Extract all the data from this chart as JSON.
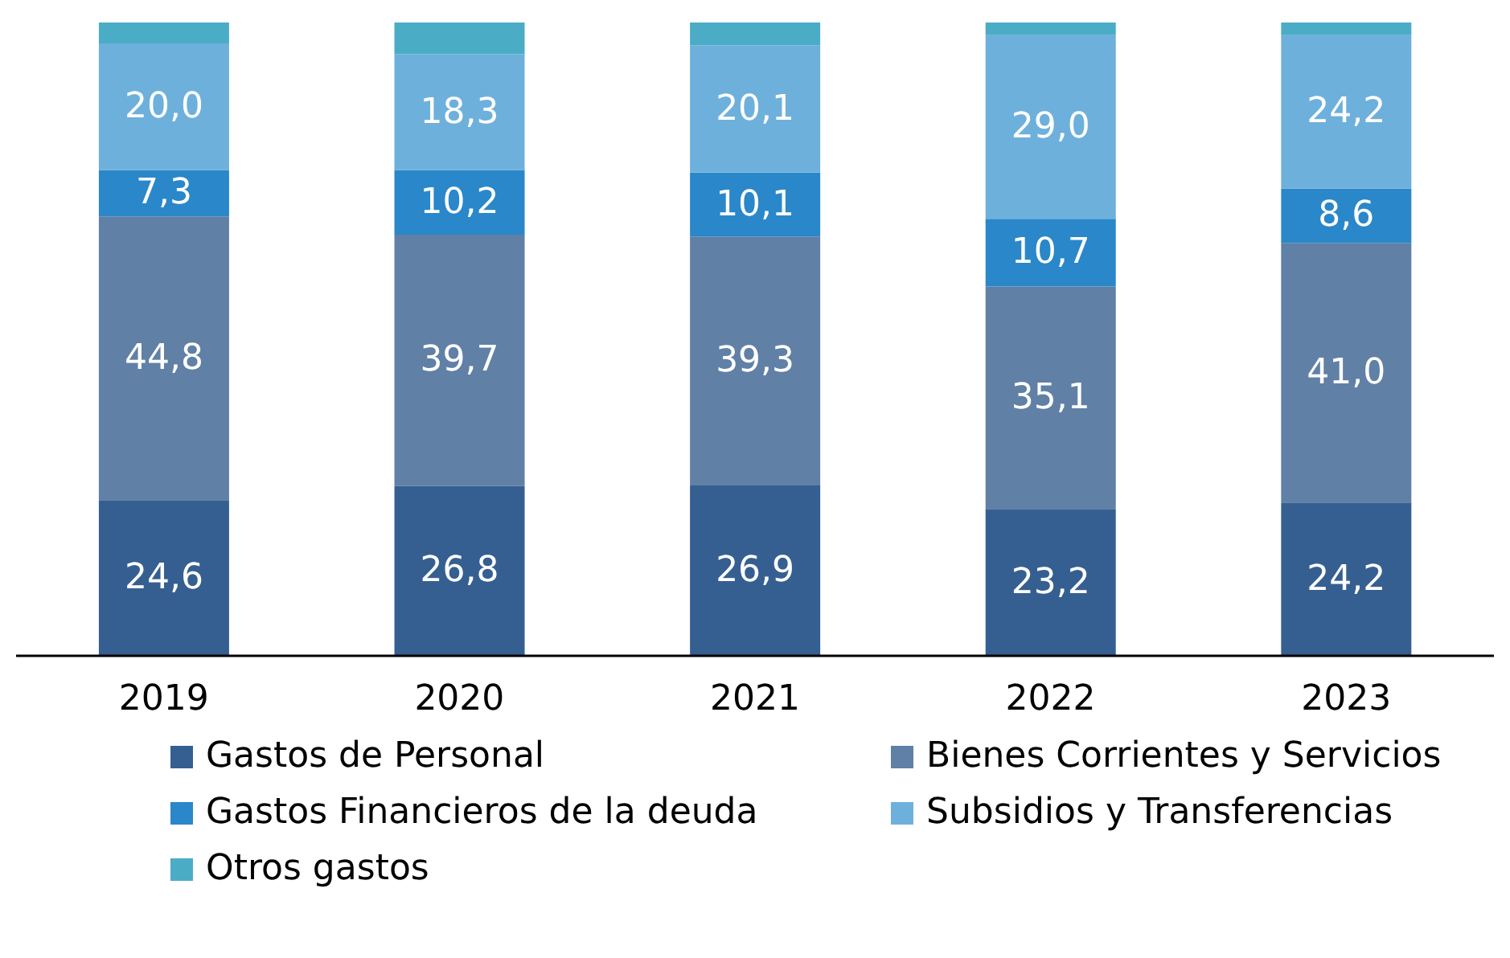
{
  "chart_data": {
    "type": "bar",
    "stacked": true,
    "categories": [
      "2019",
      "2020",
      "2021",
      "2022",
      "2023"
    ],
    "series": [
      {
        "name": "Gastos de Personal",
        "color": "#365f91",
        "values": [
          24.6,
          26.8,
          26.9,
          23.2,
          24.2
        ],
        "value_labels": [
          "24,6",
          "26,8",
          "26,9",
          "23,2",
          "24,2"
        ]
      },
      {
        "name": "Bienes Corrientes y Servicios",
        "color": "#6080a6",
        "values": [
          44.8,
          39.7,
          39.3,
          35.1,
          41.0
        ],
        "value_labels": [
          "44,8",
          "39,7",
          "39,3",
          "35,1",
          "41,0"
        ]
      },
      {
        "name": "Gastos Financieros de la deuda",
        "color": "#2a87c9",
        "values": [
          7.3,
          10.2,
          10.1,
          10.7,
          8.6
        ],
        "value_labels": [
          "7,3",
          "10,2",
          "10,1",
          "10,7",
          "8,6"
        ]
      },
      {
        "name": "Subsidios y Transferencias",
        "color": "#6eb0dc",
        "values": [
          20.0,
          18.3,
          20.1,
          29.0,
          24.2
        ],
        "value_labels": [
          "20,0",
          "18,3",
          "20,1",
          "29,0",
          "24,2"
        ]
      },
      {
        "name": "Otros gastos",
        "color": "#4bacc6",
        "values": [
          3.3,
          5.0,
          3.6,
          2.0,
          2.0
        ],
        "value_labels": [
          null,
          null,
          null,
          null,
          null
        ]
      }
    ],
    "legend": "bottom",
    "grid": false
  }
}
